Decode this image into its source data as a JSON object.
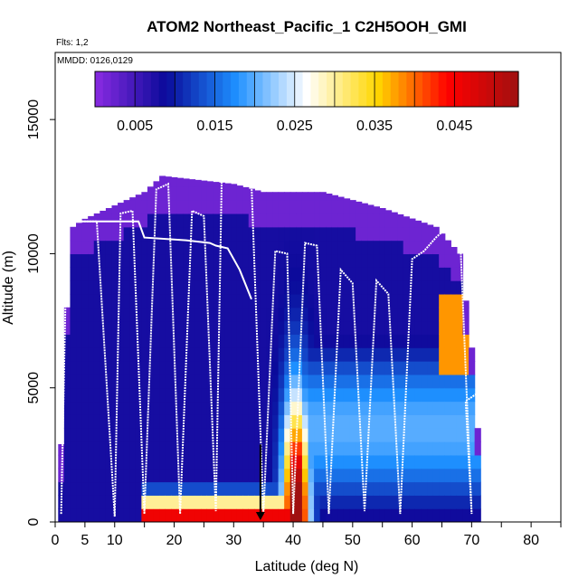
{
  "chart_data": {
    "type": "heatmap",
    "title": "ATOM2 Northeast_Pacific_1 C2H5OOH_GMI",
    "flights_note": "Flts: 1,2",
    "dates_note": "MMDD: 0126,0129",
    "xlabel": "Latitude (deg N)",
    "ylabel": "Altitude (m)",
    "xlim": [
      0,
      85
    ],
    "ylim": [
      0,
      17500
    ],
    "x_ticks": [
      0,
      5,
      10,
      20,
      30,
      40,
      50,
      60,
      70,
      80
    ],
    "x_tick_labels": [
      "0",
      "5",
      "10",
      "20",
      "30",
      "40",
      "50",
      "60",
      "70",
      "80"
    ],
    "x_minor_ticks": [
      15,
      25,
      35,
      45,
      55,
      65,
      75,
      85
    ],
    "y_ticks": [
      0,
      5000,
      10000,
      15000
    ],
    "y_tick_labels": [
      "0",
      "5000",
      "10000",
      "15000"
    ],
    "colorbar": {
      "range": [
        0,
        0.053
      ],
      "tick_values": [
        0.005,
        0.015,
        0.025,
        0.035,
        0.045
      ],
      "tick_labels": [
        "0.005",
        "0.015",
        "0.025",
        "0.035",
        "0.045"
      ],
      "color_stops": [
        "#8a2be2",
        "#0a0a9a",
        "#1e90ff",
        "#ffffff",
        "#ffd700",
        "#ff0000",
        "#a01010"
      ]
    },
    "field": {
      "lat_min": 0.5,
      "lat_max": 71.5,
      "alt_step": 500,
      "tops": [
        [
          0.5,
          500
        ],
        [
          1,
          2900
        ],
        [
          2,
          8000
        ],
        [
          3,
          11000
        ],
        [
          5,
          11300
        ],
        [
          10,
          11800
        ],
        [
          15,
          12300
        ],
        [
          18,
          12900
        ],
        [
          30,
          12600
        ],
        [
          35,
          12300
        ],
        [
          45,
          12300
        ],
        [
          55,
          11700
        ],
        [
          64,
          11000
        ],
        [
          68,
          10000
        ],
        [
          70,
          6500
        ],
        [
          71.5,
          2000
        ]
      ],
      "peak_lat": 40.5,
      "peak_value": 0.052,
      "low_alt_value": 0.048,
      "background_value": 0.008
    },
    "flight_track": {
      "color": "#ffffff",
      "points": [
        [
          1,
          300
        ],
        [
          2,
          11200
        ],
        [
          7,
          11200
        ],
        [
          10,
          200
        ],
        [
          11,
          11500
        ],
        [
          13,
          11600
        ],
        [
          15,
          300
        ],
        [
          17,
          12400
        ],
        [
          19,
          12600
        ],
        [
          21,
          300
        ],
        [
          23,
          11600
        ],
        [
          25,
          11400
        ],
        [
          27,
          400
        ],
        [
          28,
          12800
        ],
        [
          33,
          12600
        ],
        [
          35,
          300
        ],
        [
          37,
          10100
        ],
        [
          39,
          10000
        ],
        [
          40,
          300
        ],
        [
          42,
          10400
        ],
        [
          44,
          10300
        ],
        [
          46,
          300
        ],
        [
          48,
          9400
        ],
        [
          50,
          8900
        ],
        [
          52,
          400
        ],
        [
          54,
          9000
        ],
        [
          56,
          8500
        ],
        [
          58,
          300
        ],
        [
          60,
          9800
        ],
        [
          62,
          10100
        ],
        [
          64,
          10600
        ],
        [
          66,
          11000
        ],
        [
          68,
          11000
        ],
        [
          70,
          300
        ],
        [
          69,
          4500
        ],
        [
          71,
          4800
        ]
      ],
      "inner_track": [
        [
          3,
          11200
        ],
        [
          14,
          11200
        ],
        [
          15,
          10600
        ],
        [
          22,
          10500
        ],
        [
          26,
          10400
        ],
        [
          27,
          10300
        ],
        [
          29,
          10200
        ],
        [
          31,
          9400
        ],
        [
          33,
          8300
        ]
      ]
    },
    "marker": {
      "type": "arrow",
      "lat": 34.5,
      "altitude": 500
    }
  }
}
